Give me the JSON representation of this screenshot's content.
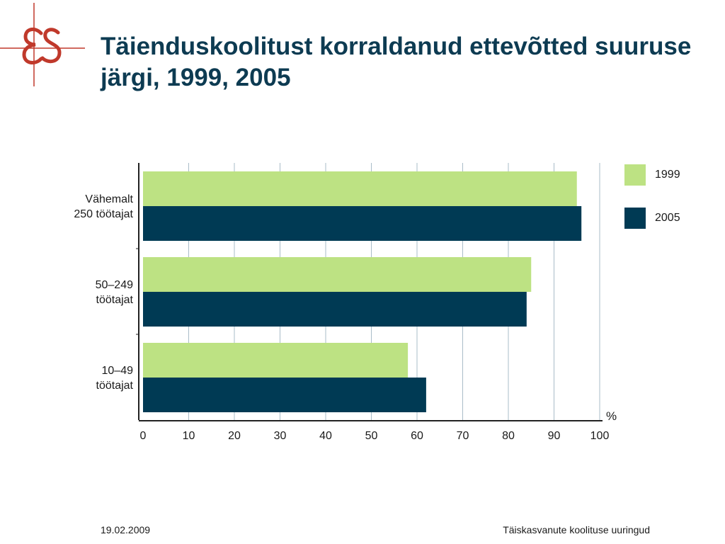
{
  "title": "Täienduskoolitust korraldanud ettevõtted suuruse järgi, 1999, 2005",
  "footer": {
    "date": "19.02.2009",
    "source": "Täiskasvanute koolituse uuringud"
  },
  "colors": {
    "title": "#0d3b52",
    "series_1999": "#bde283",
    "series_2005": "#003a54",
    "grid": "#a9bcc8",
    "logo": "#c0392b"
  },
  "chart_data": {
    "type": "bar",
    "orientation": "horizontal",
    "title": "Täienduskoolitust korraldanud ettevõtted suuruse järgi, 1999, 2005",
    "categories": [
      [
        "Vähemalt",
        "250 töötajat"
      ],
      [
        "50–249",
        "töötajat"
      ],
      [
        "10–49",
        "töötajat"
      ]
    ],
    "series": [
      {
        "name": "1999",
        "values": [
          95,
          85,
          58
        ],
        "color": "#bde283"
      },
      {
        "name": "2005",
        "values": [
          96,
          84,
          62
        ],
        "color": "#003a54"
      }
    ],
    "xlim": [
      0,
      100
    ],
    "xticks": [
      "0",
      "10",
      "20",
      "30",
      "40",
      "50",
      "60",
      "70",
      "80",
      "90",
      "100"
    ],
    "xunit": "%",
    "grid": true,
    "legend": "top-right"
  }
}
